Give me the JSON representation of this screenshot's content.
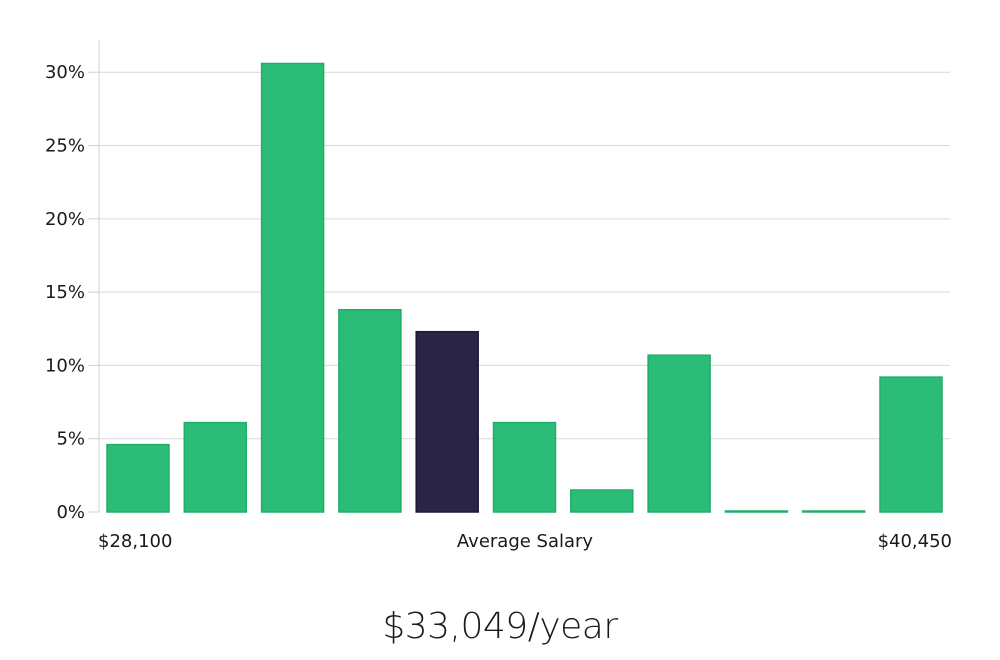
{
  "colors": {
    "bar": "#2bbd77",
    "bar_stroke": "#22ad6a",
    "highlight": "#2a2547",
    "highlight_stroke": "#1d1936",
    "grid": "#d9d9d9",
    "text": "#1a1a1a"
  },
  "chart_data": {
    "type": "bar",
    "y_axis": {
      "min": 0,
      "max": 30,
      "ticks": [
        0,
        5,
        10,
        15,
        20,
        25,
        30
      ],
      "tick_labels": [
        "0%",
        "5%",
        "10%",
        "15%",
        "20%",
        "25%",
        "30%"
      ],
      "unit": "%"
    },
    "x_axis": {
      "left_label": "$28,100",
      "center_label": "Average Salary",
      "right_label": "$40,450"
    },
    "values": [
      4.6,
      6.1,
      30.6,
      13.8,
      12.3,
      6.1,
      1.5,
      10.7,
      0.05,
      0.05,
      9.2
    ],
    "highlight_index": 4,
    "grid": true
  },
  "caption": {
    "salary": "$33,049/year"
  }
}
